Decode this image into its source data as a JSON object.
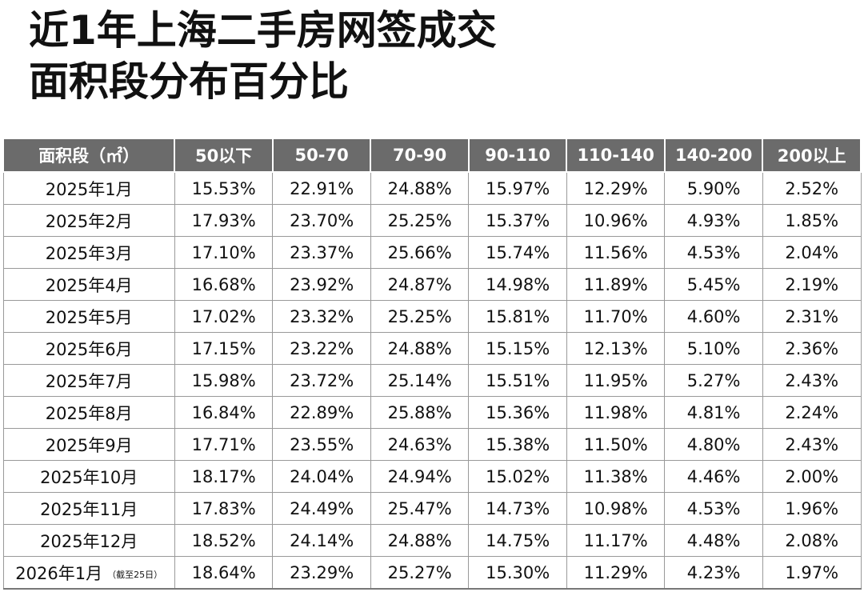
{
  "title": {
    "line1": "近1年上海二手房网签成交",
    "line2": "面积段分布百分比"
  },
  "table": {
    "headers": [
      "面积段（㎡）",
      "50以下",
      "50-70",
      "70-90",
      "90-110",
      "110-140",
      "140-200",
      "200以上"
    ],
    "rows": [
      {
        "label": "2025年1月",
        "note": "",
        "values": [
          "15.53%",
          "22.91%",
          "24.88%",
          "15.97%",
          "12.29%",
          "5.90%",
          "2.52%"
        ]
      },
      {
        "label": "2025年2月",
        "note": "",
        "values": [
          "17.93%",
          "23.70%",
          "25.25%",
          "15.37%",
          "10.96%",
          "4.93%",
          "1.85%"
        ]
      },
      {
        "label": "2025年3月",
        "note": "",
        "values": [
          "17.10%",
          "23.37%",
          "25.66%",
          "15.74%",
          "11.56%",
          "4.53%",
          "2.04%"
        ]
      },
      {
        "label": "2025年4月",
        "note": "",
        "values": [
          "16.68%",
          "23.92%",
          "24.87%",
          "14.98%",
          "11.89%",
          "5.45%",
          "2.19%"
        ]
      },
      {
        "label": "2025年5月",
        "note": "",
        "values": [
          "17.02%",
          "23.32%",
          "25.25%",
          "15.81%",
          "11.70%",
          "4.60%",
          "2.31%"
        ]
      },
      {
        "label": "2025年6月",
        "note": "",
        "values": [
          "17.15%",
          "23.22%",
          "24.88%",
          "15.15%",
          "12.13%",
          "5.10%",
          "2.36%"
        ]
      },
      {
        "label": "2025年7月",
        "note": "",
        "values": [
          "15.98%",
          "23.72%",
          "25.14%",
          "15.51%",
          "11.95%",
          "5.27%",
          "2.43%"
        ]
      },
      {
        "label": "2025年8月",
        "note": "",
        "values": [
          "16.84%",
          "22.89%",
          "25.88%",
          "15.36%",
          "11.98%",
          "4.81%",
          "2.24%"
        ]
      },
      {
        "label": "2025年9月",
        "note": "",
        "values": [
          "17.71%",
          "23.55%",
          "24.63%",
          "15.38%",
          "11.50%",
          "4.80%",
          "2.43%"
        ]
      },
      {
        "label": "2025年10月",
        "note": "",
        "values": [
          "18.17%",
          "24.04%",
          "24.94%",
          "15.02%",
          "11.38%",
          "4.46%",
          "2.00%"
        ]
      },
      {
        "label": "2025年11月",
        "note": "",
        "values": [
          "17.83%",
          "24.49%",
          "25.47%",
          "14.73%",
          "10.98%",
          "4.53%",
          "1.96%"
        ]
      },
      {
        "label": "2025年12月",
        "note": "",
        "values": [
          "18.52%",
          "24.14%",
          "24.88%",
          "14.75%",
          "11.17%",
          "4.48%",
          "2.08%"
        ]
      },
      {
        "label": "2026年1月",
        "note": "（截至25日）",
        "values": [
          "18.64%",
          "23.29%",
          "25.27%",
          "15.30%",
          "11.29%",
          "4.23%",
          "1.97%"
        ]
      }
    ]
  },
  "colors": {
    "header_bg": "#6b6b6b",
    "header_text": "#ffffff",
    "title_text": "#111111",
    "grid": "#9a9a9a"
  }
}
